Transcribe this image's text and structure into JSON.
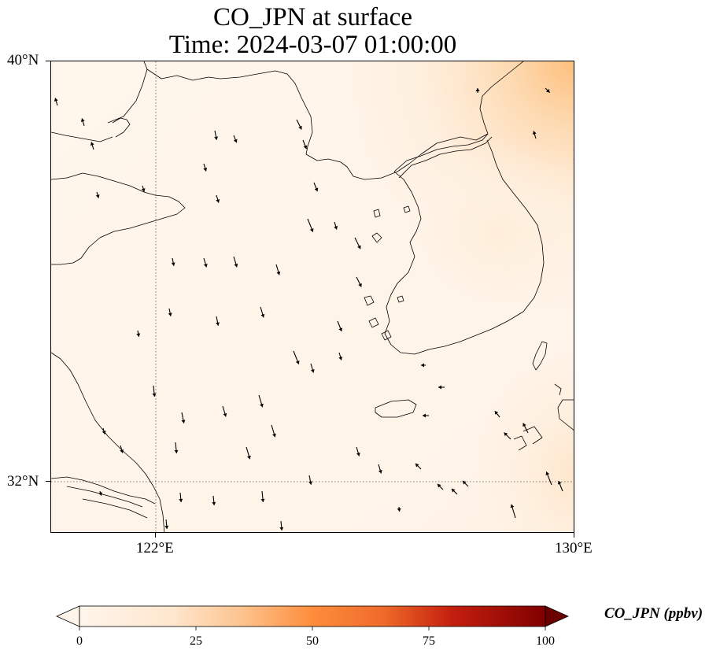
{
  "title": {
    "line1": "CO_JPN at surface",
    "line2": "Time: 2024-03-07 01:00:00"
  },
  "map": {
    "lon_range": [
      120,
      130
    ],
    "lat_range": [
      31,
      40
    ],
    "gridlines": {
      "lon": [
        122
      ],
      "lat": [
        32
      ],
      "style": "dotted"
    },
    "field_colormap": "orange-red",
    "land_color": "#ffffff",
    "coastline_color": "#000000"
  },
  "axes": {
    "x_ticks": [
      {
        "lon": 122,
        "label": "122°E"
      },
      {
        "lon": 130,
        "label": "130°E"
      }
    ],
    "y_ticks": [
      {
        "lat": 40,
        "label": "40°N"
      },
      {
        "lat": 32,
        "label": "32°N"
      }
    ]
  },
  "colorbar": {
    "label": "CO_JPN (ppbv)",
    "min": 0,
    "max": 100,
    "extend": "both",
    "ticks": [
      {
        "value": 0,
        "label": "0"
      },
      {
        "value": 25,
        "label": "25"
      },
      {
        "value": 50,
        "label": "50"
      },
      {
        "value": 75,
        "label": "75"
      },
      {
        "value": 100,
        "label": "100"
      }
    ],
    "colors": [
      "#fff5eb",
      "#fdd0a2",
      "#fd8d3c",
      "#d94801",
      "#a50f15",
      "#67000d"
    ]
  }
}
